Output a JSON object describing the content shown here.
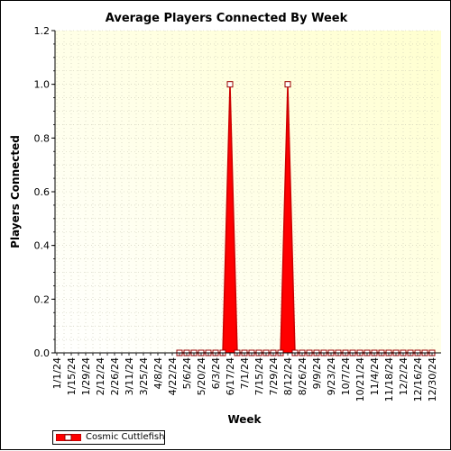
{
  "chart_data": {
    "type": "area",
    "title": "Average Players Connected By Week",
    "xlabel": "Week",
    "ylabel": "Players Connected",
    "ylim": [
      0,
      1.2
    ],
    "yticks": [
      "0.0",
      "0.2",
      "0.4",
      "0.6",
      "0.8",
      "1.0",
      "1.2"
    ],
    "grid": true,
    "legend_position": "bottom-left",
    "x_tick_labels": [
      "1/1/24",
      "1/15/24",
      "1/29/24",
      "2/12/24",
      "2/26/24",
      "3/11/24",
      "3/25/24",
      "4/8/24",
      "4/22/24",
      "5/6/24",
      "5/20/24",
      "6/3/24",
      "6/17/24",
      "7/1/24",
      "7/15/24",
      "7/29/24",
      "8/12/24",
      "8/26/24",
      "9/9/24",
      "9/23/24",
      "10/7/24",
      "10/21/24",
      "11/4/24",
      "11/18/24",
      "12/2/24",
      "12/16/24",
      "12/30/24"
    ],
    "weeks": [
      "1/1/24",
      "1/8/24",
      "1/15/24",
      "1/22/24",
      "1/29/24",
      "2/5/24",
      "2/12/24",
      "2/19/24",
      "2/26/24",
      "3/4/24",
      "3/11/24",
      "3/18/24",
      "3/25/24",
      "4/1/24",
      "4/8/24",
      "4/15/24",
      "4/22/24",
      "4/29/24",
      "5/6/24",
      "5/13/24",
      "5/20/24",
      "5/27/24",
      "6/3/24",
      "6/10/24",
      "6/17/24",
      "6/24/24",
      "7/1/24",
      "7/8/24",
      "7/15/24",
      "7/22/24",
      "7/29/24",
      "8/5/24",
      "8/12/24",
      "8/19/24",
      "8/26/24",
      "9/2/24",
      "9/9/24",
      "9/16/24",
      "9/23/24",
      "9/30/24",
      "10/7/24",
      "10/14/24",
      "10/21/24",
      "10/28/24",
      "11/4/24",
      "11/11/24",
      "11/18/24",
      "11/25/24",
      "12/2/24",
      "12/9/24",
      "12/16/24",
      "12/23/24",
      "12/30/24"
    ],
    "series": [
      {
        "name": "Cosmic Cuttlefish",
        "color": "#ff0000",
        "first_point_index": 17,
        "values": [
          0,
          0,
          0,
          0,
          0,
          0,
          0,
          0,
          0,
          0,
          0,
          0,
          0,
          0,
          0,
          0,
          0,
          0,
          0,
          0,
          0,
          0,
          0,
          0,
          1.0,
          0,
          0,
          0,
          0,
          0,
          0,
          0,
          1.0,
          0,
          0,
          0,
          0,
          0,
          0,
          0,
          0,
          0,
          0,
          0,
          0,
          0,
          0,
          0,
          0,
          0,
          0,
          0,
          0
        ]
      }
    ]
  },
  "colors": {
    "plot_bg_top": "#ffffd8",
    "plot_bg_bottom": "#ffffff",
    "series": "#ff0000",
    "series_outline": "#990000"
  }
}
